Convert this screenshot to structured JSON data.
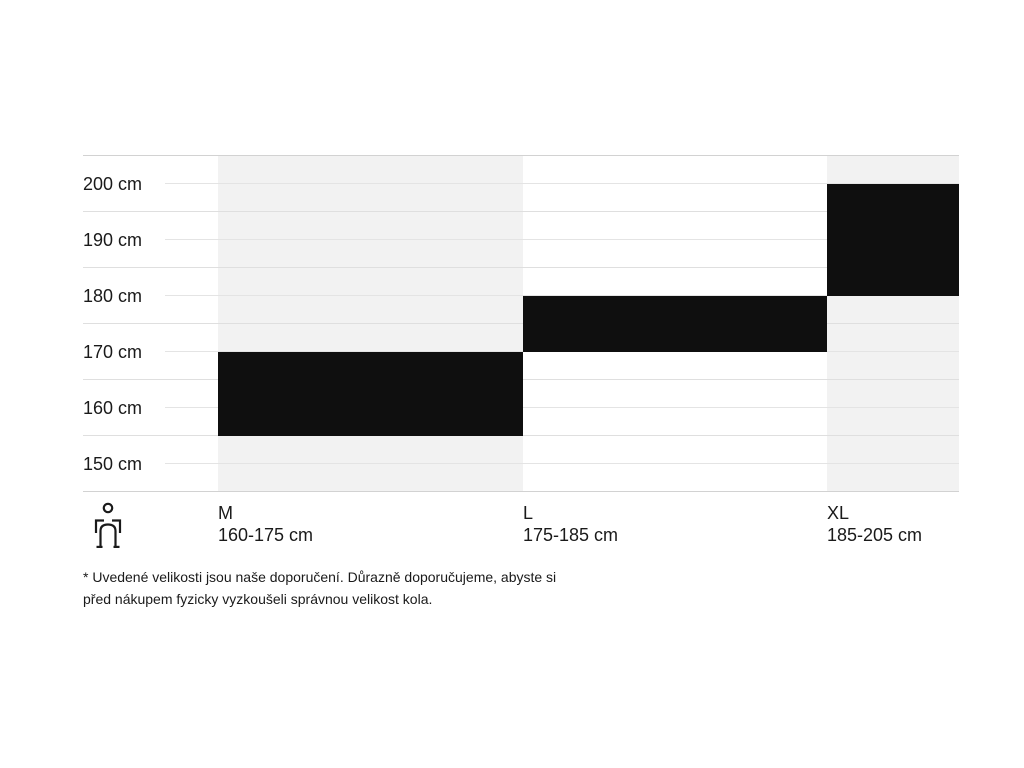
{
  "chart_data": {
    "type": "bar",
    "subtype": "vertical-range-bands",
    "title": "",
    "unit": "cm",
    "y_axis": {
      "min_cm": 145,
      "max_cm": 205,
      "grid_step_cm": 5,
      "grid": true
    },
    "y_ticks": [
      {
        "cm": 200,
        "label": "200 cm"
      },
      {
        "cm": 190,
        "label": "190 cm"
      },
      {
        "cm": 180,
        "label": "180 cm"
      },
      {
        "cm": 170,
        "label": "170 cm"
      },
      {
        "cm": 160,
        "label": "160 cm"
      },
      {
        "cm": 150,
        "label": "150 cm"
      }
    ],
    "series": [
      {
        "size": "M",
        "range_label": "160-175 cm",
        "min_cm": 160,
        "max_cm": 175
      },
      {
        "size": "L",
        "range_label": "175-185 cm",
        "min_cm": 175,
        "max_cm": 185
      },
      {
        "size": "XL",
        "range_label": "185-205 cm",
        "min_cm": 185,
        "max_cm": 205
      }
    ]
  },
  "colors": {
    "bar": "#0f0f0f",
    "column_shade": "#f2f2f2",
    "column_plain": "#ffffff",
    "grid": "#dfdfdf",
    "grid_tick_row": "#e4e4e4",
    "grid_edge": "#d2d2d2",
    "text": "#1a1a1a"
  },
  "icons": {
    "person": "person-height-icon"
  },
  "footnote": {
    "lines": [
      "* Uvedené velikosti jsou naše doporučení. Důrazně doporučujeme, abyste si",
      "před nákupem fyzicky vyzkoušeli správnou velikost kola."
    ]
  }
}
